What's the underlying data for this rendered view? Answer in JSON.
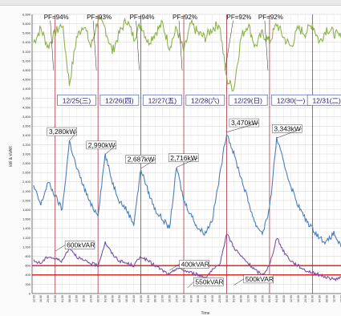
{
  "chart_data": {
    "type": "line",
    "xlabel": "Time",
    "ylabel": "kW & kVAR",
    "ylim": [
      0,
      6000
    ],
    "grid": true,
    "y_ticks": [
      "0",
      "200",
      "400",
      "600",
      "800",
      "1,000",
      "1,200",
      "1,400",
      "1,600",
      "1,800",
      "2,000",
      "2,200",
      "2,400",
      "2,600",
      "2,800",
      "3,000",
      "3,200",
      "3,400",
      "3,600",
      "3,800",
      "4,000",
      "4,200",
      "4,400",
      "4,600",
      "4,800",
      "5,000",
      "5,200",
      "5,400",
      "5,600",
      "5,800",
      "6,000"
    ],
    "x_tick_labels": [
      "12:00",
      "16:00",
      "20:00",
      "00:00",
      "04:00",
      "08:00",
      "12:00",
      "16:00",
      "20:00",
      "00:00",
      "04:00",
      "08:00",
      "12:00",
      "16:00",
      "20:00",
      "00:00",
      "04:00",
      "08:00",
      "12:00",
      "16:00",
      "20:00",
      "00:00",
      "04:00",
      "08:00",
      "12:00",
      "16:00",
      "20:00",
      "00:00",
      "04:00",
      "08:00",
      "12:00",
      "16:00",
      "20:00",
      "00:00",
      "04:00",
      "08:00",
      "12:00",
      "16:00",
      "20:00",
      "00:00",
      "04:00",
      "08:00",
      "12:00",
      "16:00"
    ],
    "days": [
      "12/25(三)",
      "12/26(四)",
      "12/27(五)",
      "12/28(六)",
      "12/29(日)",
      "12/30(一)",
      "12/31(二)"
    ],
    "pf_labels": [
      "PF=94%",
      "PF=93%",
      "PF=94%",
      "PF=92%",
      "PF=92%",
      "PF=92%"
    ],
    "annotations": {
      "kw_peaks": [
        "3,280kW",
        "2,990kW",
        "2,687kW",
        "2,716kW",
        "3,470kW",
        "3,343kW"
      ],
      "kvar": [
        "600kVAR",
        "400kVAR",
        "550kVAR",
        "500kVAR"
      ]
    },
    "reference_lines": [
      600,
      400
    ],
    "series": [
      {
        "color": "#8db34a",
        "x": [
          0,
          1,
          2,
          3,
          4,
          5,
          6,
          7,
          8,
          9,
          10,
          11,
          12,
          13,
          14,
          15,
          16,
          17,
          18,
          19,
          20,
          21,
          22,
          23,
          24,
          25,
          26,
          27,
          28,
          29,
          30,
          31,
          32,
          33,
          34,
          35,
          36,
          37,
          38,
          39,
          40,
          41,
          42,
          43
        ],
        "values": [
          5400,
          5700,
          5300,
          5600,
          5800,
          4500,
          5500,
          5800,
          5300,
          5900,
          5700,
          5200,
          5600,
          5900,
          5500,
          5800,
          5400,
          5600,
          5800,
          5300,
          5700,
          5200,
          5800,
          5600,
          5500,
          5700,
          5800,
          4600,
          4400,
          5500,
          5800,
          5300,
          5600,
          5400,
          5800,
          5500,
          5300,
          5700,
          5600,
          5800,
          5400,
          5700,
          5600,
          5500
        ]
      },
      {
        "color": "#4a7fbd",
        "x": [
          0,
          1,
          2,
          3,
          4,
          5,
          6,
          7,
          8,
          9,
          10,
          11,
          12,
          13,
          14,
          15,
          16,
          17,
          18,
          19,
          20,
          21,
          22,
          23,
          24,
          25,
          26,
          27,
          28,
          29,
          30,
          31,
          32,
          33,
          34,
          35,
          36,
          37,
          38,
          39,
          40,
          41,
          42,
          43
        ],
        "values": [
          2300,
          1900,
          2400,
          2100,
          1800,
          3280,
          2700,
          2300,
          1900,
          1700,
          2990,
          2400,
          2000,
          1800,
          1500,
          2687,
          2200,
          1800,
          1600,
          1400,
          2716,
          2000,
          1700,
          1400,
          1300,
          1600,
          2500,
          3470,
          3000,
          2500,
          2000,
          1500,
          1300,
          1800,
          3343,
          2800,
          2300,
          1900,
          1600,
          1400,
          1200,
          1100,
          1300,
          1000
        ]
      },
      {
        "color": "#7b4fa3",
        "x": [
          0,
          1,
          2,
          3,
          4,
          5,
          6,
          7,
          8,
          9,
          10,
          11,
          12,
          13,
          14,
          15,
          16,
          17,
          18,
          19,
          20,
          21,
          22,
          23,
          24,
          25,
          26,
          27,
          28,
          29,
          30,
          31,
          32,
          33,
          34,
          35,
          36,
          37,
          38,
          39,
          40,
          41,
          42,
          43
        ],
        "values": [
          700,
          650,
          800,
          750,
          700,
          1000,
          800,
          700,
          650,
          600,
          1100,
          850,
          700,
          650,
          600,
          800,
          700,
          600,
          500,
          400,
          550,
          500,
          450,
          400,
          350,
          500,
          600,
          1300,
          1000,
          800,
          650,
          500,
          400,
          600,
          1200,
          900,
          700,
          600,
          500,
          450,
          400,
          350,
          300,
          350
        ]
      }
    ]
  }
}
